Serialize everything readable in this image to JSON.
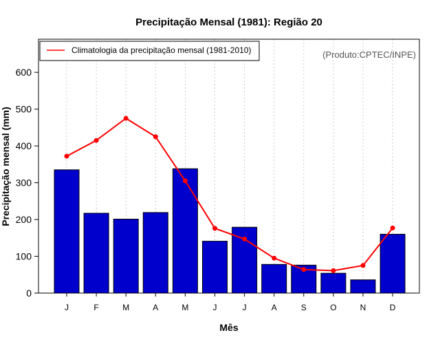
{
  "chart_data": {
    "type": "bar",
    "title": "Precipitação Mensal (1981): Região 20",
    "xlabel": "Mês",
    "ylabel": "Precipitação mensal (mm)",
    "categories": [
      "J",
      "F",
      "M",
      "A",
      "M",
      "J",
      "J",
      "A",
      "S",
      "O",
      "N",
      "D"
    ],
    "ylim": [
      0,
      690
    ],
    "yticks": [
      0,
      100,
      200,
      300,
      400,
      500,
      600
    ],
    "grid": "vertical dotted",
    "series": [
      {
        "name": "Precipitação mensal (1981)",
        "type": "bar",
        "values": [
          335,
          217,
          201,
          219,
          338,
          141,
          179,
          78,
          76,
          54,
          36,
          160
        ]
      },
      {
        "name": "Climatologia da precipitação mensal (1981-2010)",
        "type": "line",
        "values": [
          372,
          415,
          475,
          425,
          305,
          176,
          147,
          95,
          64,
          61,
          75,
          177
        ]
      }
    ],
    "legend": {
      "position": "top-left",
      "entries": [
        "Climatologia da precipitação mensal (1981-2010)"
      ]
    },
    "annotation": "(Produto:CPTEC/INPE)",
    "colors": {
      "bar": "#0000cc",
      "line": "#ff0000",
      "frame": "#000000",
      "grid": "#cccccc"
    }
  }
}
